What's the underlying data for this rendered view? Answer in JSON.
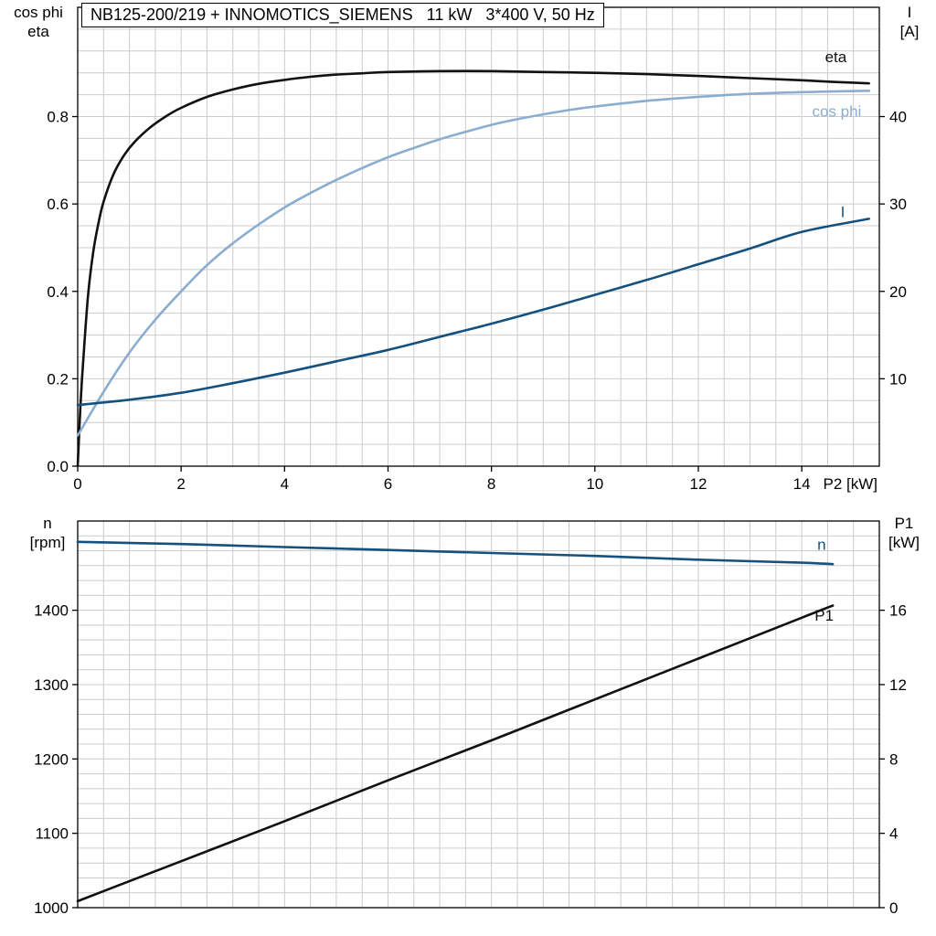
{
  "style": {
    "background": "#ffffff",
    "grid_color": "#cccccc",
    "axis_color": "#000000",
    "text_color": "#000000",
    "black_curve": "#111111",
    "dark_blue": "#15517f",
    "light_blue": "#8aadd0"
  },
  "chart_data": [
    {
      "type": "line",
      "title": "NB125-200/219 + INNOMOTICS_SIEMENS   11 kW   3*400 V, 50 Hz",
      "x_axis": {
        "label": "P2 [kW]",
        "min": 0,
        "max": 15.5,
        "grid_step": 0.5,
        "major_ticks": [
          0,
          2,
          4,
          6,
          8,
          10,
          12,
          14
        ]
      },
      "y_left": {
        "name": "cos phi\neta",
        "min": 0,
        "max": 1.05,
        "grid_step": 0.05,
        "ticks": [
          "0.0",
          "0.2",
          "0.4",
          "0.6",
          "0.8"
        ],
        "tick_values": [
          0,
          0.2,
          0.4,
          0.6,
          0.8
        ]
      },
      "y_right": {
        "name": "I\n[A]",
        "min": 0,
        "max": 52.5,
        "ticks": [
          "10",
          "20",
          "30",
          "40"
        ],
        "tick_values": [
          10,
          20,
          30,
          40
        ]
      },
      "series": [
        {
          "name": "eta",
          "label": "eta",
          "axis": "left",
          "color": "#111111",
          "label_at": [
            14.45,
            0.925
          ],
          "points": [
            [
              0,
              0
            ],
            [
              0.05,
              0.13
            ],
            [
              0.1,
              0.23
            ],
            [
              0.2,
              0.39
            ],
            [
              0.3,
              0.49
            ],
            [
              0.4,
              0.555
            ],
            [
              0.5,
              0.605
            ],
            [
              0.7,
              0.67
            ],
            [
              0.9,
              0.712
            ],
            [
              1.1,
              0.742
            ],
            [
              1.4,
              0.775
            ],
            [
              1.7,
              0.8
            ],
            [
              2,
              0.82
            ],
            [
              2.5,
              0.845
            ],
            [
              3,
              0.862
            ],
            [
              3.5,
              0.875
            ],
            [
              4,
              0.884
            ],
            [
              4.5,
              0.891
            ],
            [
              5,
              0.896
            ],
            [
              5.5,
              0.899
            ],
            [
              6,
              0.902
            ],
            [
              7,
              0.904
            ],
            [
              8,
              0.904
            ],
            [
              9,
              0.902
            ],
            [
              10,
              0.9
            ],
            [
              11,
              0.897
            ],
            [
              12,
              0.893
            ],
            [
              13,
              0.888
            ],
            [
              14,
              0.883
            ],
            [
              14.7,
              0.879
            ],
            [
              15.3,
              0.876
            ]
          ]
        },
        {
          "name": "cos-phi",
          "label": "cos phi",
          "axis": "left",
          "color": "#8aadd0",
          "label_at": [
            14.2,
            0.8
          ],
          "points": [
            [
              0,
              0.07
            ],
            [
              0.5,
              0.17
            ],
            [
              1,
              0.26
            ],
            [
              1.5,
              0.335
            ],
            [
              2,
              0.4
            ],
            [
              2.5,
              0.46
            ],
            [
              3,
              0.51
            ],
            [
              3.5,
              0.553
            ],
            [
              4,
              0.592
            ],
            [
              4.5,
              0.625
            ],
            [
              5,
              0.655
            ],
            [
              5.5,
              0.682
            ],
            [
              6,
              0.707
            ],
            [
              6.5,
              0.728
            ],
            [
              7,
              0.748
            ],
            [
              7.5,
              0.765
            ],
            [
              8,
              0.781
            ],
            [
              8.5,
              0.794
            ],
            [
              9,
              0.805
            ],
            [
              9.5,
              0.815
            ],
            [
              10,
              0.823
            ],
            [
              11,
              0.836
            ],
            [
              12,
              0.845
            ],
            [
              13,
              0.852
            ],
            [
              14,
              0.856
            ],
            [
              15.3,
              0.859
            ]
          ]
        },
        {
          "name": "I",
          "label": "I",
          "axis": "right",
          "color": "#15517f",
          "label_at": [
            14.75,
            28.5
          ],
          "points": [
            [
              0,
              7.0
            ],
            [
              1,
              7.6
            ],
            [
              2,
              8.4
            ],
            [
              3,
              9.5
            ],
            [
              4,
              10.7
            ],
            [
              5,
              12.0
            ],
            [
              6,
              13.3
            ],
            [
              7,
              14.8
            ],
            [
              8,
              16.3
            ],
            [
              9,
              17.9
            ],
            [
              10,
              19.6
            ],
            [
              11,
              21.3
            ],
            [
              12,
              23.1
            ],
            [
              13,
              24.9
            ],
            [
              14,
              26.8
            ],
            [
              15.3,
              28.3
            ]
          ]
        }
      ]
    },
    {
      "type": "line",
      "x_axis": {
        "min": 0,
        "max": 15.5,
        "grid_step": 0.5,
        "major_ticks": []
      },
      "y_left": {
        "name": "n\n[rpm]",
        "min": 1000,
        "max": 1520,
        "grid_step": 20,
        "ticks": [
          "1000",
          "1100",
          "1200",
          "1300",
          "1400"
        ],
        "tick_values": [
          1000,
          1100,
          1200,
          1300,
          1400
        ]
      },
      "y_right": {
        "name": "P1\n[kW]",
        "min": 0,
        "max": 20.8,
        "ticks": [
          "0",
          "4",
          "8",
          "12",
          "16"
        ],
        "tick_values": [
          0,
          4,
          8,
          12,
          16
        ]
      },
      "series": [
        {
          "name": "n",
          "label": "n",
          "axis": "left",
          "color": "#15517f",
          "label_at": [
            14.3,
            1481
          ],
          "points": [
            [
              0,
              1492
            ],
            [
              2,
              1489
            ],
            [
              4,
              1485
            ],
            [
              6,
              1481
            ],
            [
              8,
              1477
            ],
            [
              10,
              1473
            ],
            [
              12,
              1468
            ],
            [
              14,
              1464
            ],
            [
              14.6,
              1462
            ]
          ]
        },
        {
          "name": "P1",
          "label": "P1",
          "axis": "right",
          "color": "#111111",
          "label_at": [
            14.25,
            15.45
          ],
          "points": [
            [
              0,
              0.35
            ],
            [
              2,
              2.5
            ],
            [
              4,
              4.65
            ],
            [
              6,
              6.85
            ],
            [
              8,
              9.0
            ],
            [
              10,
              11.2
            ],
            [
              12,
              13.4
            ],
            [
              14,
              15.6
            ],
            [
              14.6,
              16.25
            ]
          ]
        }
      ]
    }
  ]
}
